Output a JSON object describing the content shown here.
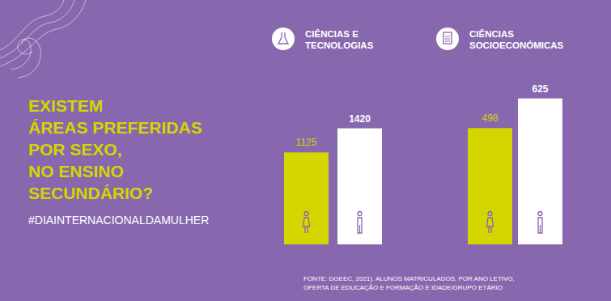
{
  "headline": "EXISTEM\nÁREAS PREFERIDAS\nPOR SEXO,\nNO ENSINO\nSECUNDÁRIO?",
  "hashtag": "#DIAINTERNACIONALDAMULHER",
  "source": "FONTE: DGEEC, 2021). ALUNOS MATRICULADOS, POR ANO LETIVO,\nOFERTA DE EDUCAÇÃO E FORMAÇÃO E IDADE/GRUPO ETÁRIO",
  "chart_data": [
    {
      "type": "bar",
      "title": "CIÊNCIAS E\nTECNOLOGIAS",
      "categories": [
        null,
        null
      ],
      "values": [
        1125,
        1420
      ],
      "colors": [
        "#d4d600",
        "#ffffff"
      ],
      "ylim": [
        0,
        2000
      ],
      "data_labels": true,
      "tick_labels": false,
      "grid": false
    },
    {
      "type": "bar",
      "title": "CIÊNCIAS\nSOCIOECONÓMICAS",
      "categories": [
        null,
        null
      ],
      "values": [
        498,
        625
      ],
      "colors": [
        "#d4d600",
        "#ffffff"
      ],
      "ylim": [
        0,
        700
      ],
      "data_labels": true,
      "tick_labels": false,
      "grid": false
    }
  ]
}
